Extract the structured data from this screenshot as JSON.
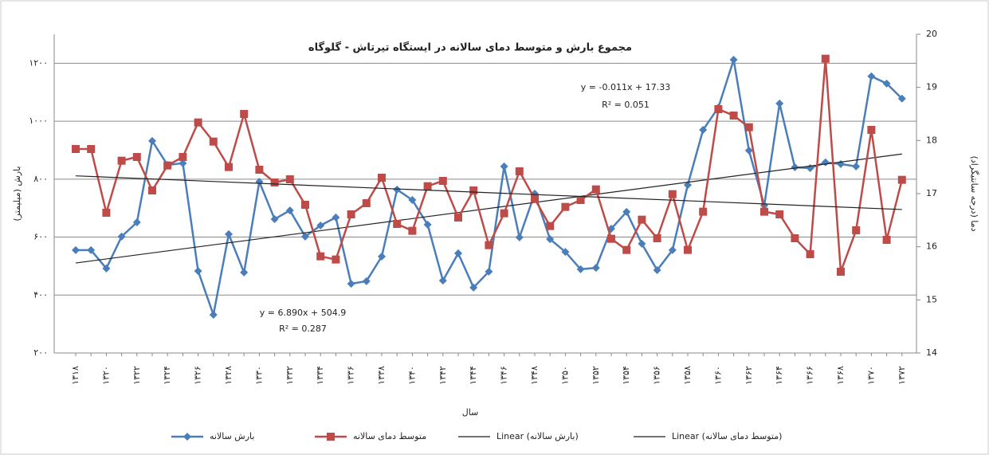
{
  "chart_data": {
    "type": "line",
    "title": "مجموع بارش و متوسط دمای سالانه در ایستگاه تیرتاش - گلوگاه",
    "x_label": "سال",
    "y_label": "بارش (میلیمتر)",
    "y2_label": "دما (درجه سانتیگراد)",
    "categories": [
      "۱۳۱۸",
      null,
      "۱۳۲۰",
      null,
      "۱۳۲۲",
      null,
      "۱۳۲۴",
      null,
      "۱۳۲۶",
      null,
      "۱۳۲۸",
      null,
      "۱۳۳۰",
      null,
      "۱۳۳۲",
      null,
      "۱۳۳۴",
      null,
      "۱۳۳۶",
      null,
      "۱۳۳۸",
      null,
      "۱۳۴۰",
      null,
      "۱۳۴۲",
      null,
      "۱۳۴۴",
      null,
      "۱۳۴۶",
      null,
      "۱۳۴۸",
      null,
      "۱۳۵۰",
      null,
      "۱۳۵۲",
      null,
      "۱۳۵۴",
      null,
      "۱۳۵۶",
      null,
      "۱۳۵۸",
      null,
      "۱۳۶۰",
      null,
      "۱۳۶۲",
      null,
      "۱۳۶۴",
      null,
      "۱۳۶۶",
      null,
      "۱۳۶۸",
      null,
      "۱۳۷۰",
      null,
      "۱۳۷۲"
    ],
    "series": [
      {
        "name": "بارش سالانه",
        "color": "#4a7ebb",
        "marker": "diamond",
        "axis": "y",
        "values": [
          555,
          555,
          492,
          602,
          651,
          932,
          849,
          855,
          483,
          332,
          610,
          478,
          791,
          662,
          692,
          602,
          640,
          668,
          439,
          448,
          533,
          764,
          728,
          643,
          450,
          544,
          426,
          481,
          844,
          599,
          750,
          593,
          549,
          489,
          494,
          629,
          687,
          577,
          486,
          555,
          780,
          970,
          1047,
          1212,
          899,
          709,
          1061,
          841,
          838,
          858,
          852,
          844,
          1155,
          1130,
          1078
        ]
      },
      {
        "name": "متوسط دمای سالانه",
        "color": "#be4b48",
        "marker": "square",
        "axis": "y2",
        "values": [
          17.84,
          17.84,
          16.64,
          17.62,
          17.69,
          17.06,
          17.53,
          17.69,
          18.34,
          17.98,
          17.5,
          18.5,
          17.45,
          17.21,
          17.27,
          16.79,
          15.82,
          15.76,
          16.61,
          16.82,
          17.3,
          16.43,
          16.3,
          17.14,
          17.24,
          16.55,
          17.06,
          16.03,
          16.63,
          17.42,
          16.9,
          16.39,
          16.75,
          16.88,
          17.08,
          16.15,
          15.94,
          16.51,
          16.16,
          16.99,
          15.94,
          16.66,
          18.59,
          18.47,
          18.25,
          16.66,
          16.61,
          16.16,
          15.86,
          19.54,
          15.53,
          16.31,
          18.2,
          16.13,
          17.26
        ]
      }
    ],
    "trendlines": true,
    "trendline_names": [
      "Linear (بارش سالانه)",
      "Linear (متوسط دمای سالانه)"
    ],
    "annotations": [
      "y = 6.890x + 504.9",
      "R² = 0.287",
      "y = -0.011x + 17.33",
      "R² = 0.051"
    ],
    "ylim": [
      200,
      1300
    ],
    "yticks": [
      {
        "value": 200,
        "label": "۲۰۰"
      },
      {
        "value": 400,
        "label": "۴۰۰"
      },
      {
        "value": 600,
        "label": "۶۰۰"
      },
      {
        "value": 800,
        "label": "۸۰۰"
      },
      {
        "value": 1000,
        "label": "۱۰۰۰"
      },
      {
        "value": 1200,
        "label": "۱۲۰۰"
      }
    ],
    "y2lim": [
      14,
      20
    ],
    "y2ticks": [
      14,
      15,
      16,
      17,
      18,
      19,
      20
    ],
    "grid": true,
    "legend": "bottom"
  }
}
